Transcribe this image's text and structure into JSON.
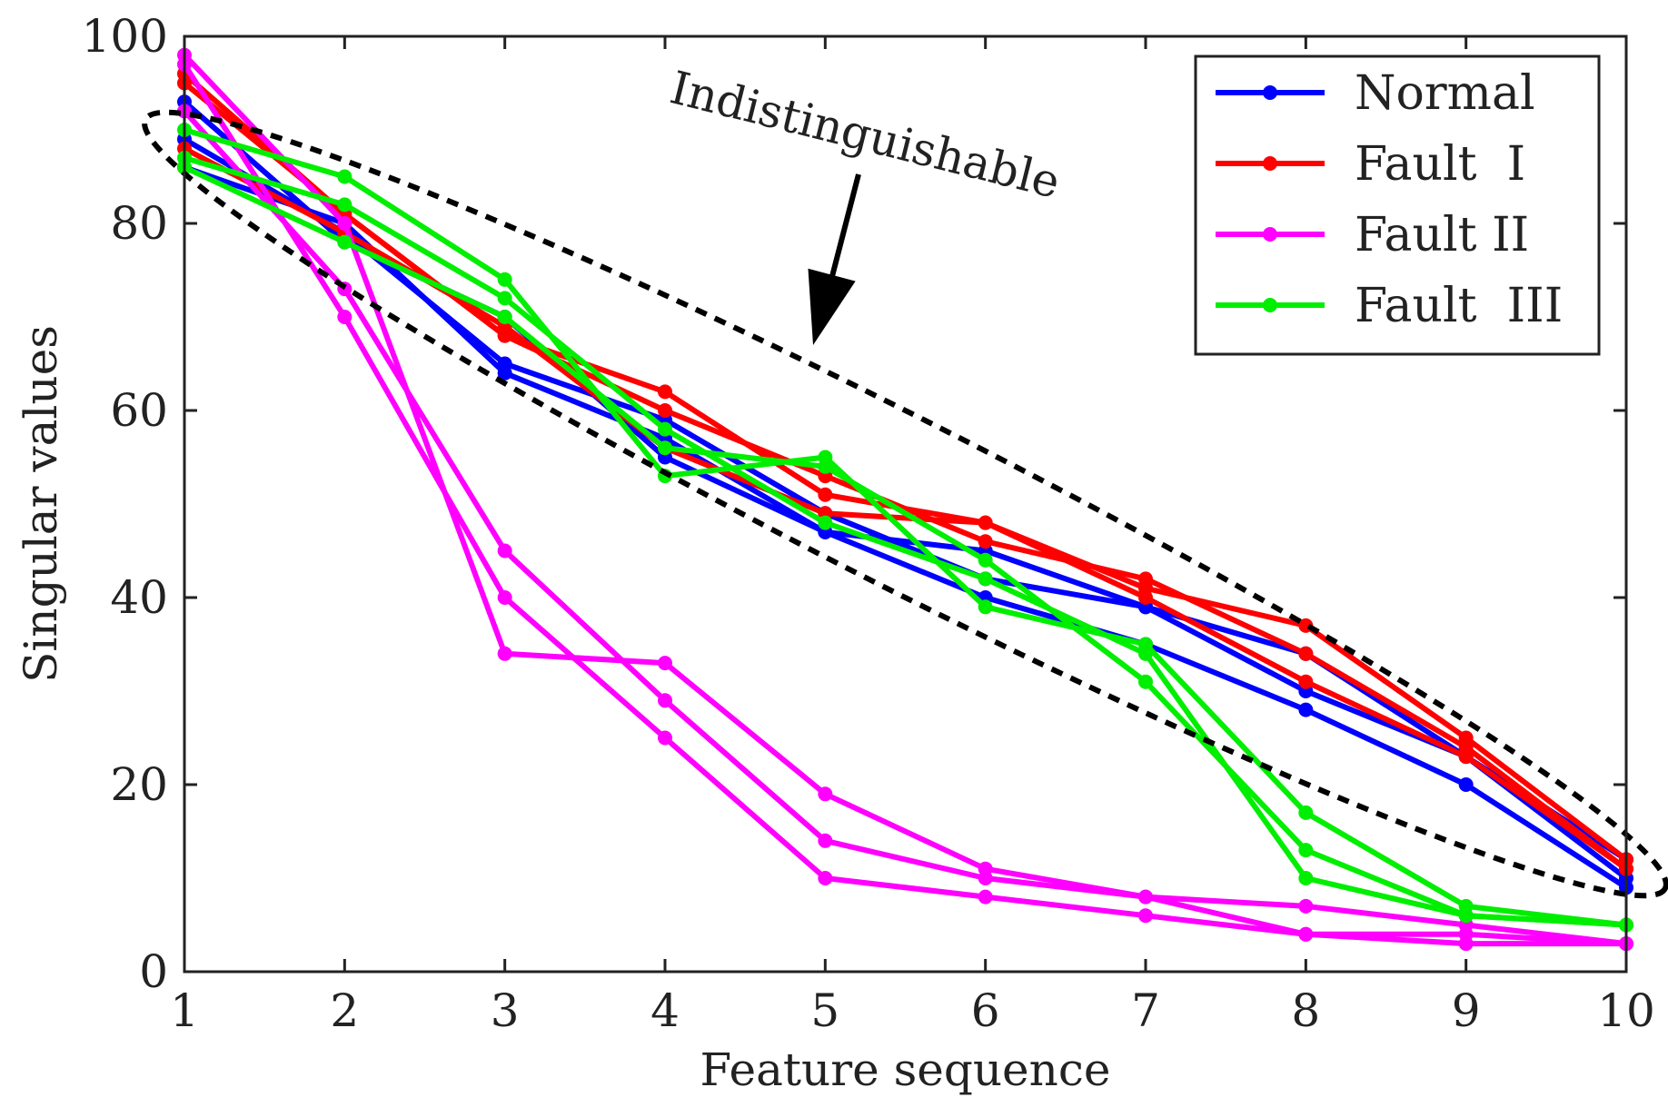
{
  "chart_data": {
    "type": "line",
    "xlabel": "Feature sequence",
    "ylabel": "Singular values",
    "xlim": [
      1,
      10
    ],
    "ylim": [
      0,
      100
    ],
    "xticks": [
      "1",
      "2",
      "3",
      "4",
      "5",
      "6",
      "7",
      "8",
      "9",
      "10"
    ],
    "yticks": [
      "0",
      "20",
      "40",
      "60",
      "80",
      "100"
    ],
    "grid": false,
    "legend_position": "top-right",
    "annotation": "Indistinguishable",
    "x": [
      1,
      2,
      3,
      4,
      5,
      6,
      7,
      8,
      9,
      10
    ],
    "series": [
      {
        "name": "Normal",
        "group": "Normal",
        "color": "#0000ff",
        "values": [
          93,
          78,
          70,
          55,
          47,
          45,
          39,
          34,
          23,
          10
        ]
      },
      {
        "name": "Normal",
        "group": "Normal",
        "color": "#0000ff",
        "values": [
          89,
          79,
          65,
          59,
          49,
          42,
          39,
          30,
          23,
          12
        ]
      },
      {
        "name": "Normal",
        "group": "Normal",
        "color": "#0000ff",
        "values": [
          86,
          80,
          64,
          57,
          47,
          40,
          35,
          28,
          20,
          9
        ]
      },
      {
        "name": "Fault  I",
        "group": "Fault  I",
        "color": "#ff0000",
        "values": [
          96,
          81,
          68,
          62,
          51,
          48,
          41,
          37,
          25,
          12
        ]
      },
      {
        "name": "Fault  I",
        "group": "Fault  I",
        "color": "#ff0000",
        "values": [
          95,
          81,
          68,
          60,
          53,
          46,
          42,
          34,
          24,
          11
        ]
      },
      {
        "name": "Fault  I",
        "group": "Fault  I",
        "color": "#ff0000",
        "values": [
          88,
          79,
          69,
          56,
          49,
          48,
          40,
          31,
          23,
          11
        ]
      },
      {
        "name": "Fault II",
        "group": "Fault II",
        "color": "#ff00ff",
        "values": [
          98,
          80,
          34,
          33,
          19,
          11,
          8,
          7,
          5,
          3
        ]
      },
      {
        "name": "Fault II",
        "group": "Fault II",
        "color": "#ff00ff",
        "values": [
          92,
          73,
          45,
          29,
          14,
          10,
          8,
          4,
          4,
          3
        ]
      },
      {
        "name": "Fault II",
        "group": "Fault II",
        "color": "#ff00ff",
        "values": [
          97,
          70,
          40,
          25,
          10,
          8,
          6,
          4,
          3,
          3
        ]
      },
      {
        "name": "Fault  III",
        "group": "Fault  III",
        "color": "#00ee00",
        "values": [
          90,
          85,
          74,
          53,
          55,
          39,
          35,
          17,
          7,
          5
        ]
      },
      {
        "name": "Fault  III",
        "group": "Fault  III",
        "color": "#00ee00",
        "values": [
          87,
          82,
          72,
          58,
          48,
          42,
          34,
          10,
          6,
          5
        ]
      },
      {
        "name": "Fault  III",
        "group": "Fault  III",
        "color": "#00ee00",
        "values": [
          86,
          78,
          70,
          56,
          54,
          44,
          31,
          13,
          6,
          5
        ]
      }
    ],
    "legend": [
      {
        "label": "Normal",
        "color": "#0000ff"
      },
      {
        "label": "Fault  I",
        "color": "#ff0000"
      },
      {
        "label": "Fault II",
        "color": "#ff00ff"
      },
      {
        "label": "Fault  III",
        "color": "#00ee00"
      }
    ]
  }
}
